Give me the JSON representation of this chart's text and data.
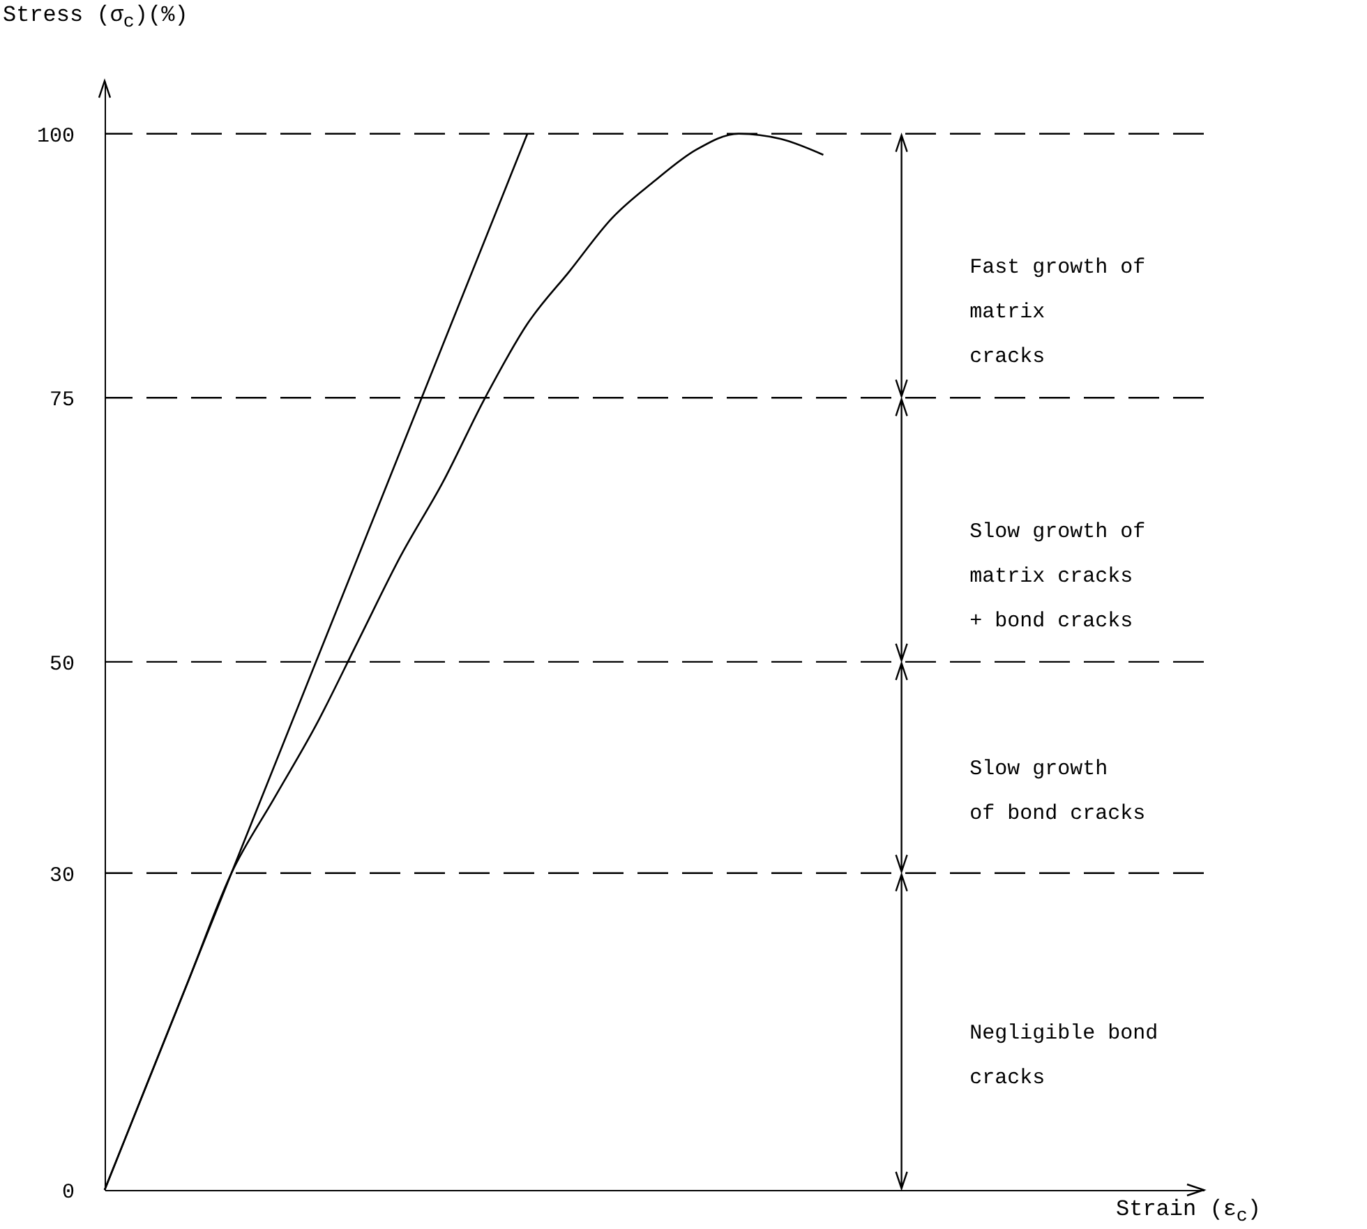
{
  "chart_data": {
    "type": "line",
    "xlabel": "Strain (ε$_{c}$)",
    "ylabel": "Stress (σ$_{c}$)(%)",
    "categories": [
      null,
      null,
      null,
      null,
      null,
      null,
      null,
      null,
      null,
      null,
      null,
      null,
      null,
      null,
      null,
      null,
      null,
      null,
      null,
      null,
      null,
      null,
      null,
      null,
      null,
      null,
      null
    ],
    "series": [
      {
        "color": "#000000",
        "values": [
          0,
          10,
          20,
          30,
          40,
          50,
          60,
          70,
          80,
          90,
          100,
          null,
          null,
          null,
          null,
          null,
          null,
          null,
          null,
          null,
          null,
          null,
          null,
          null,
          null,
          null,
          null
        ]
      },
      {
        "color": "#000000",
        "values": [
          0,
          10,
          20,
          30,
          37,
          44,
          52,
          60,
          67,
          75,
          82,
          87,
          92,
          95.5,
          98.5,
          100,
          99.5,
          98,
          null,
          null,
          null,
          null,
          null,
          null,
          null,
          null,
          null
        ]
      }
    ],
    "ylim": [
      0,
      105
    ],
    "yticks": [
      0,
      30,
      50,
      75,
      100
    ],
    "grid": false,
    "legend": false,
    "line_style": "solid",
    "marker": "none",
    "ref_lines": [
      {
        "axis": "y",
        "value": 30,
        "line_style": "dashed"
      },
      {
        "axis": "y",
        "value": 50,
        "line_style": "dashed"
      },
      {
        "axis": "y",
        "value": 75,
        "line_style": "dashed"
      },
      {
        "axis": "y",
        "value": 100,
        "line_style": "dashed"
      }
    ],
    "annotations": [
      "Fast growth of\nmatrix\ncracks",
      "Slow growth of\nmatrix cracks\n+ bond cracks",
      "Slow growth\nof bond cracks",
      "Negligible bond\n cracks"
    ]
  }
}
